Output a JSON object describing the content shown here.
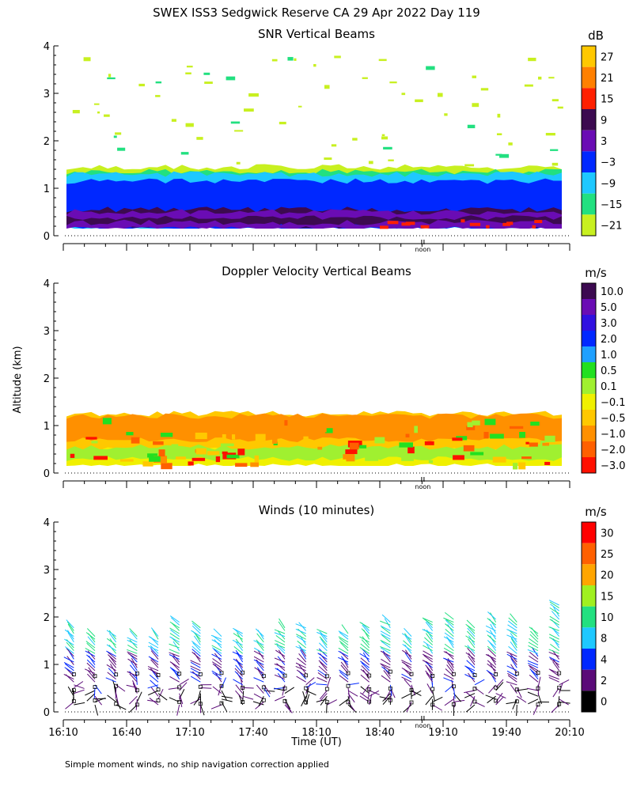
{
  "page": {
    "title": "SWEX ISS3 Sedgwick Reserve CA  29 Apr 2022 Day 119",
    "ylabel": "Altitude (km)",
    "xlabel": "Time (UT)",
    "x_ticks": [
      "16:10",
      "16:40",
      "17:10",
      "17:40",
      "18:10",
      "18:40",
      "19:10",
      "19:40",
      "20:10"
    ],
    "noon_label": "noon",
    "footnote": "Simple moment winds, no ship navigation correction applied"
  },
  "chart_data": [
    {
      "type": "heatmap",
      "title": "SNR Vertical Beams",
      "units": "dB",
      "ylim": [
        0,
        4
      ],
      "y_ticks": [
        "0",
        "1",
        "2",
        "3",
        "4"
      ],
      "xlim": [
        "16:10",
        "20:10"
      ],
      "colorbar": {
        "labels": [
          "27",
          "21",
          "15",
          "9",
          "3",
          "−3",
          "−9",
          "−15",
          "−21"
        ],
        "colors": [
          "#ffc800",
          "#ff8000",
          "#ff2000",
          "#3c0a50",
          "#6a0cb4",
          "#0028ff",
          "#1ec8ff",
          "#22e080",
          "#c8f020"
        ]
      },
      "layers": [
        {
          "class": "3",
          "altitude_km": [
            0.15,
            0.28
          ]
        },
        {
          "class": "3",
          "altitude_km": [
            0.38,
            0.5
          ]
        },
        {
          "class": "9",
          "altitude_km": [
            0.2,
            0.55
          ]
        },
        {
          "class": "-3",
          "altitude_km": [
            0.15,
            1.15
          ]
        },
        {
          "class": "-9",
          "altitude_km": [
            0.15,
            1.3
          ]
        },
        {
          "class": "-15",
          "altitude_km": [
            1.1,
            1.35
          ]
        },
        {
          "class": "-21",
          "altitude_km": [
            1.25,
            1.45
          ]
        }
      ]
    },
    {
      "type": "heatmap",
      "title": "Doppler Velocity Vertical Beams",
      "units": "m/s",
      "ylim": [
        0,
        4
      ],
      "y_ticks": [
        "0",
        "1",
        "2",
        "3",
        "4"
      ],
      "xlim": [
        "16:10",
        "20:10"
      ],
      "colorbar": {
        "labels": [
          "10.0",
          "5.0",
          "3.0",
          "2.0",
          "1.0",
          "0.5",
          "0.1",
          "−0.1",
          "−0.5",
          "−1.0",
          "−2.0",
          "−3.0"
        ],
        "colors": [
          "#3c0a50",
          "#6a0cb4",
          "#3010e0",
          "#0028ff",
          "#1ea0ff",
          "#22e020",
          "#a0f030",
          "#f0f000",
          "#ffc800",
          "#ff9000",
          "#ff6000",
          "#ff1000"
        ]
      },
      "layers": [
        {
          "class": "-0.1",
          "altitude_km": [
            0.15,
            0.6
          ]
        },
        {
          "class": "-0.5",
          "altitude_km": [
            0.5,
            1.25
          ]
        },
        {
          "class": "-1.0",
          "altitude_km": [
            0.7,
            1.2
          ]
        },
        {
          "class": "0.1",
          "altitude_km": [
            0.3,
            0.55
          ]
        }
      ]
    },
    {
      "type": "scatter",
      "title": "Winds (10 minutes)",
      "units": "m/s",
      "ylim": [
        0,
        4
      ],
      "y_ticks": [
        "0",
        "1",
        "2",
        "3",
        "4"
      ],
      "xlim": [
        "16:10",
        "20:10"
      ],
      "colorbar": {
        "labels": [
          "30",
          "25",
          "20",
          "15",
          "10",
          "8",
          "4",
          "2",
          "0"
        ],
        "colors": [
          "#ff0000",
          "#ff6000",
          "#ffa500",
          "#a0f020",
          "#22e080",
          "#1ec8ff",
          "#0028ff",
          "#5a0a78",
          "#000000"
        ]
      },
      "profile_times": [
        "16:15",
        "16:25",
        "16:35",
        "16:45",
        "16:55",
        "17:05",
        "17:15",
        "17:25",
        "17:35",
        "17:45",
        "17:55",
        "18:05",
        "18:15",
        "18:25",
        "18:35",
        "18:45",
        "18:55",
        "19:05",
        "19:15",
        "19:25",
        "19:35",
        "19:45",
        "19:55",
        "20:05"
      ],
      "profile_tops_km": [
        1.8,
        1.6,
        1.6,
        1.6,
        1.6,
        1.9,
        1.8,
        1.6,
        1.7,
        1.6,
        1.8,
        1.8,
        1.7,
        1.7,
        1.8,
        1.9,
        1.6,
        1.9,
        2.0,
        1.8,
        2.0,
        1.9,
        1.7,
        2.3
      ],
      "barb_symbol": "feathered wind barb"
    }
  ]
}
